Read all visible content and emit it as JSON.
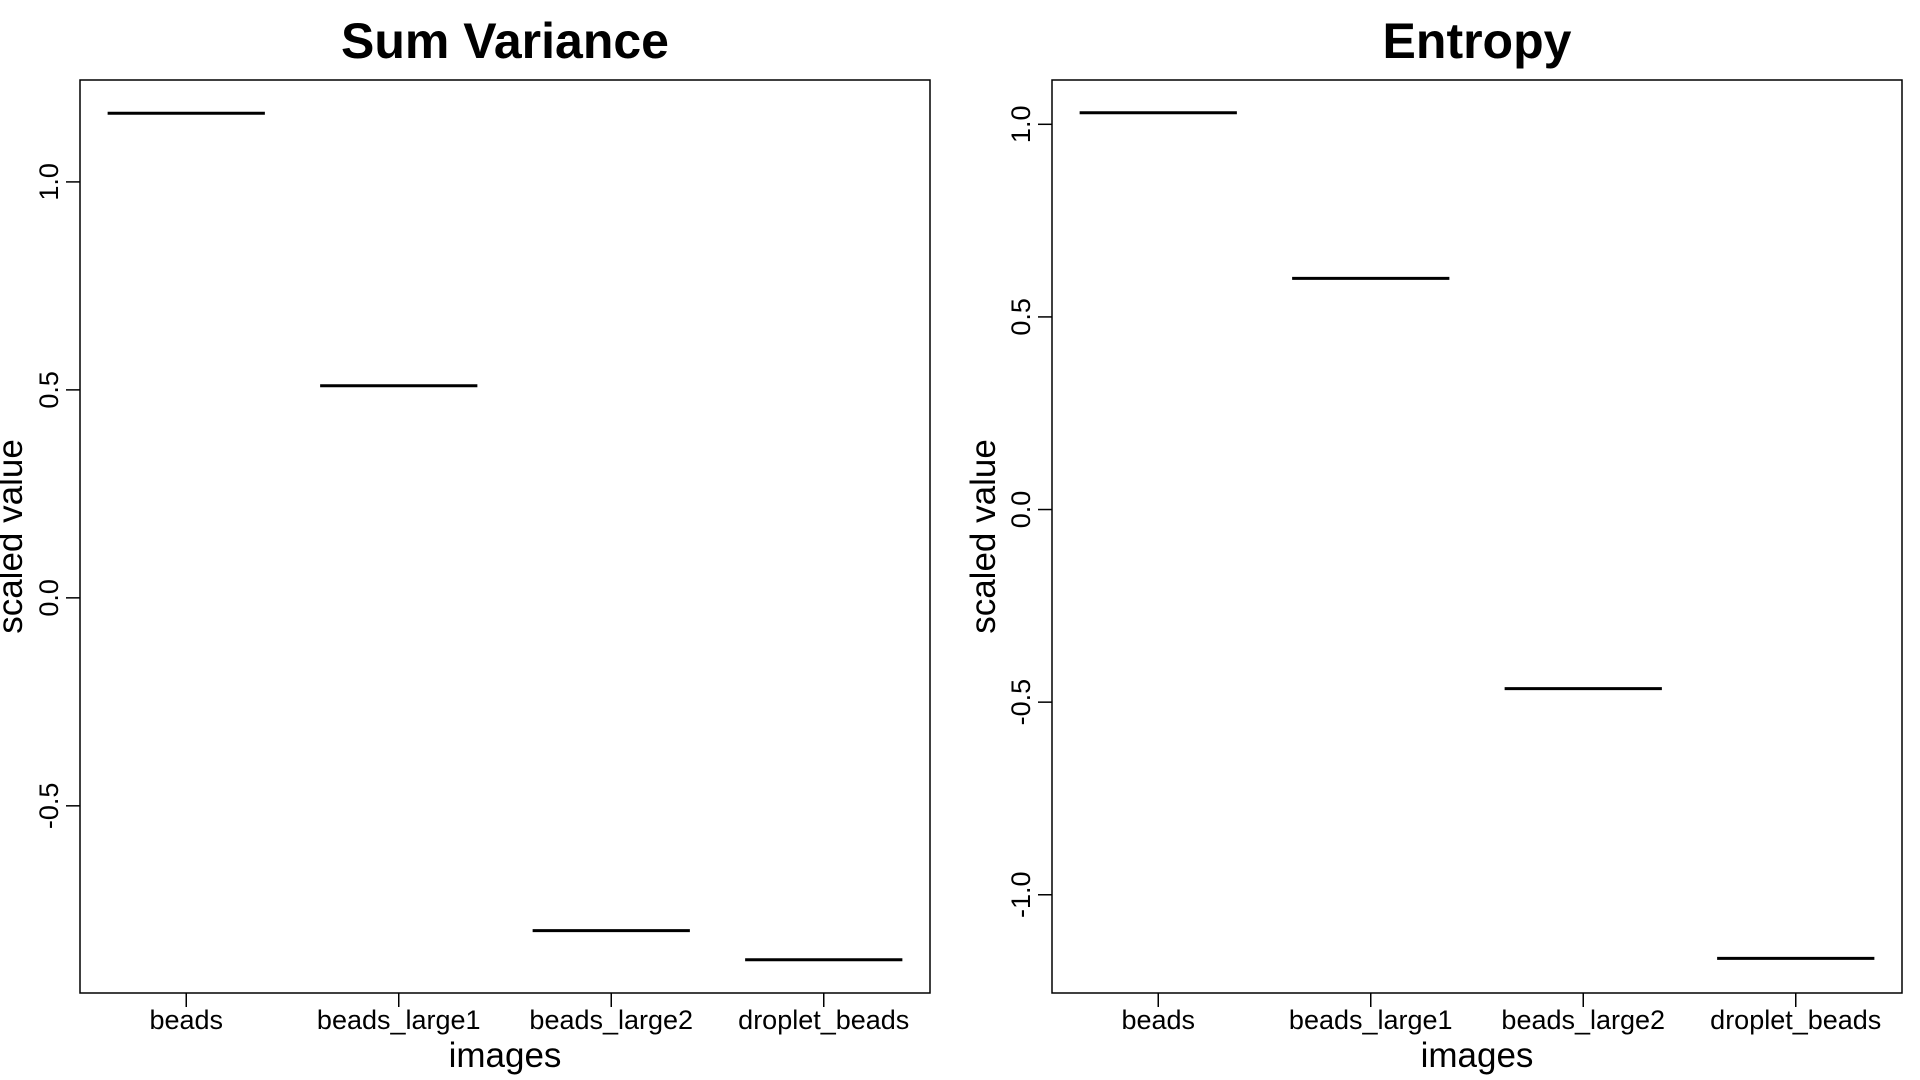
{
  "chart_data": [
    {
      "type": "bar",
      "title": "Sum Variance",
      "xlabel": "images",
      "ylabel": "scaled value",
      "categories": [
        "beads",
        "beads_large1",
        "beads_large2",
        "droplet_beads"
      ],
      "values": [
        1.165,
        0.51,
        -0.8,
        -0.87
      ],
      "ylim": [
        -0.95,
        1.245
      ],
      "yticks": [
        -0.5,
        0.0,
        0.5,
        1.0
      ],
      "ytick_labels": [
        "-0.5",
        "0.0",
        "0.5",
        "1.0"
      ],
      "grid": false
    },
    {
      "type": "bar",
      "title": "Entropy",
      "xlabel": "images",
      "ylabel": "scaled value",
      "categories": [
        "beads",
        "beads_large1",
        "beads_large2",
        "droplet_beads"
      ],
      "values": [
        1.03,
        0.6,
        -0.465,
        -1.165
      ],
      "ylim": [
        -1.255,
        1.115
      ],
      "yticks": [
        -1.0,
        -0.5,
        0.0,
        0.5,
        1.0
      ],
      "ytick_labels": [
        "-1.0",
        "-0.5",
        "0.0",
        "0.5",
        "1.0"
      ],
      "grid": false
    }
  ]
}
